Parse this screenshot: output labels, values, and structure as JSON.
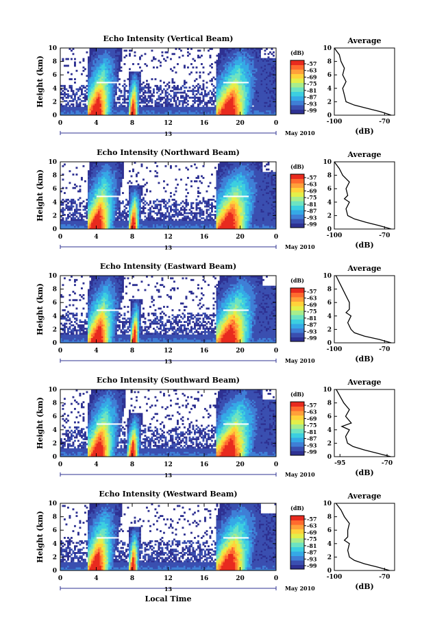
{
  "figure": {
    "x_axis_label": "Local Time",
    "day_marker": "13",
    "month_label": "May 2010",
    "y_axis_label": "Height (km)"
  },
  "colorbar": {
    "unit": "(dB)",
    "tick_labels": [
      "-57",
      "-63",
      "-69",
      "-75",
      "-81",
      "-87",
      "-93",
      "-99"
    ],
    "colors": [
      "#2e3192",
      "#3a4fb0",
      "#3f7fd6",
      "#35a9e6",
      "#3ccfe0",
      "#6de3c2",
      "#a8ed8c",
      "#e3ef4a",
      "#ffd23a",
      "#ffa03a",
      "#ff6a2e",
      "#e82a1e"
    ]
  },
  "chart_data": [
    {
      "type": "heatmap",
      "title": "Echo Intensity (Vertical Beam)",
      "x_ticks": [
        "0",
        "4",
        "8",
        "12",
        "16",
        "20",
        "0"
      ],
      "xlim": [
        0,
        24
      ],
      "y_ticks": [
        "0",
        "2",
        "4",
        "6",
        "8",
        "10"
      ],
      "ylim": [
        0,
        10
      ],
      "zlim": [
        -99,
        -57
      ],
      "rain_events": [
        [
          3.2,
          6.0
        ],
        [
          7.8,
          8.8
        ],
        [
          17.6,
          21.5
        ]
      ],
      "average_profile": {
        "title": "Average",
        "xlabel": "(dB)",
        "x_ticks": [
          "-100",
          "-70"
        ],
        "xlim": [
          -100,
          -64
        ],
        "height": [
          0,
          0.5,
          1,
          1.5,
          2,
          3,
          4,
          4.5,
          5,
          6,
          7,
          8,
          9,
          10
        ],
        "values": [
          -66,
          -72,
          -80,
          -88,
          -93,
          -94,
          -95,
          -94,
          -93,
          -95,
          -94,
          -96,
          -97,
          -100
        ]
      }
    },
    {
      "type": "heatmap",
      "title": "Echo Intensity (Northward Beam)",
      "x_ticks": [
        "0",
        "4",
        "8",
        "12",
        "16",
        "20",
        "0"
      ],
      "xlim": [
        0,
        24
      ],
      "y_ticks": [
        "0",
        "2",
        "4",
        "6",
        "8",
        "10"
      ],
      "ylim": [
        0,
        10
      ],
      "zlim": [
        -99,
        -57
      ],
      "rain_events": [
        [
          3.2,
          6.2
        ],
        [
          7.8,
          8.9
        ],
        [
          17.5,
          21.6
        ]
      ],
      "average_profile": {
        "title": "Average",
        "xlabel": "(dB)",
        "x_ticks": [
          "-100",
          "-70"
        ],
        "xlim": [
          -100,
          -64
        ],
        "height": [
          0,
          0.5,
          1,
          1.5,
          2,
          3,
          4,
          4.5,
          5,
          6,
          7,
          8,
          9,
          10
        ],
        "values": [
          -66,
          -73,
          -81,
          -88,
          -92,
          -93,
          -91,
          -94,
          -92,
          -93,
          -91,
          -95,
          -97,
          -100
        ]
      }
    },
    {
      "type": "heatmap",
      "title": "Echo Intensity (Eastward Beam)",
      "x_ticks": [
        "0",
        "4",
        "8",
        "12",
        "16",
        "20",
        "0"
      ],
      "xlim": [
        0,
        24
      ],
      "y_ticks": [
        "0",
        "2",
        "4",
        "6",
        "8",
        "10"
      ],
      "ylim": [
        0,
        10
      ],
      "zlim": [
        -99,
        -57
      ],
      "rain_events": [
        [
          3.3,
          6.2
        ],
        [
          8.0,
          8.9
        ],
        [
          17.6,
          21.6
        ]
      ],
      "average_profile": {
        "title": "Average",
        "xlabel": "(dB)",
        "x_ticks": [
          "-100",
          "-70"
        ],
        "xlim": [
          -100,
          -64
        ],
        "height": [
          0,
          0.5,
          1,
          1.5,
          2,
          3,
          4,
          4.5,
          5,
          6,
          7,
          8,
          9,
          10
        ],
        "values": [
          -66,
          -73,
          -82,
          -88,
          -90,
          -92,
          -90,
          -93,
          -91,
          -91,
          -93,
          -95,
          -97,
          -99
        ]
      }
    },
    {
      "type": "heatmap",
      "title": "Echo Intensity (Southward Beam)",
      "x_ticks": [
        "0",
        "4",
        "8",
        "12",
        "16",
        "20",
        "0"
      ],
      "xlim": [
        0,
        24
      ],
      "y_ticks": [
        "0",
        "2",
        "4",
        "6",
        "8",
        "10"
      ],
      "ylim": [
        0,
        10
      ],
      "zlim": [
        -99,
        -57
      ],
      "rain_events": [
        [
          3.3,
          6.4
        ],
        [
          7.7,
          8.9
        ],
        [
          17.5,
          21.7
        ]
      ],
      "average_profile": {
        "title": "Average",
        "xlabel": "(dB)",
        "x_ticks": [
          "-95",
          "-70"
        ],
        "xlim": [
          -98,
          -66
        ],
        "height": [
          0,
          0.5,
          1,
          1.5,
          2,
          3,
          4,
          4.5,
          5,
          6,
          7,
          8,
          9,
          10
        ],
        "values": [
          -68,
          -75,
          -82,
          -88,
          -91,
          -92,
          -90,
          -94,
          -89,
          -92,
          -90,
          -93,
          -95,
          -97
        ]
      }
    },
    {
      "type": "heatmap",
      "title": "Echo Intensity (Westward Beam)",
      "x_ticks": [
        "0",
        "4",
        "8",
        "12",
        "16",
        "20",
        "0"
      ],
      "xlim": [
        0,
        24
      ],
      "y_ticks": [
        "0",
        "2",
        "4",
        "6",
        "8",
        "10"
      ],
      "ylim": [
        0,
        10
      ],
      "zlim": [
        -99,
        -57
      ],
      "rain_events": [
        [
          3.2,
          6.0
        ],
        [
          7.8,
          8.8
        ],
        [
          17.6,
          21.5
        ]
      ],
      "average_profile": {
        "title": "Average",
        "xlabel": "(dB)",
        "x_ticks": [
          "-100",
          "-70"
        ],
        "xlim": [
          -100,
          -64
        ],
        "height": [
          0,
          0.5,
          1,
          1.5,
          2,
          3,
          4,
          4.5,
          5,
          6,
          7,
          8,
          9,
          10
        ],
        "values": [
          -67,
          -74,
          -82,
          -88,
          -91,
          -92,
          -91,
          -94,
          -92,
          -92,
          -91,
          -94,
          -96,
          -99
        ]
      }
    }
  ]
}
